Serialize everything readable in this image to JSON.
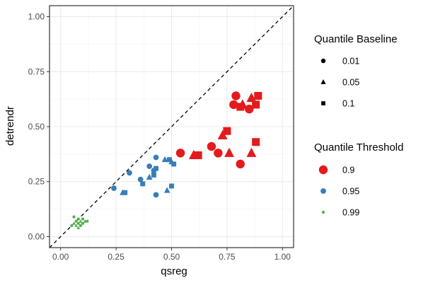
{
  "chart_data": {
    "type": "scatter",
    "xlabel": "qsreg",
    "ylabel": "detrendr",
    "xlim": [
      -0.05,
      1.05
    ],
    "ylim": [
      -0.05,
      1.05
    ],
    "x_ticks": [
      0.0,
      0.25,
      0.5,
      0.75,
      1.0
    ],
    "y_ticks": [
      0.0,
      0.25,
      0.5,
      0.75,
      1.0
    ],
    "x_tick_labels": [
      "0.00",
      "0.25",
      "0.50",
      "0.75",
      "1.00"
    ],
    "y_tick_labels": [
      "0.00",
      "0.25",
      "0.50",
      "0.75",
      "1.00"
    ],
    "grid": true,
    "reference_line": {
      "type": "identity",
      "style": "dashed",
      "color": "#000000"
    },
    "legend_placement": "right",
    "legends": [
      {
        "title": "Quantile Baseline",
        "encoding": "shape",
        "entries": [
          {
            "label": "0.01",
            "shape": "circle"
          },
          {
            "label": "0.05",
            "shape": "triangle"
          },
          {
            "label": "0.1",
            "shape": "square"
          }
        ]
      },
      {
        "title": "Quantile Threshold",
        "encoding": "color_size",
        "entries": [
          {
            "label": "0.9",
            "color": "#e41a1c",
            "size": "large"
          },
          {
            "label": "0.95",
            "color": "#377eb8",
            "size": "medium"
          },
          {
            "label": "0.99",
            "color": "#4daf4a",
            "size": "small"
          }
        ]
      }
    ],
    "series": [
      {
        "threshold": "0.9",
        "color": "#e41a1c",
        "points": [
          {
            "x": 0.54,
            "y": 0.38,
            "shape": "circle"
          },
          {
            "x": 0.68,
            "y": 0.41,
            "shape": "circle"
          },
          {
            "x": 0.71,
            "y": 0.38,
            "shape": "circle"
          },
          {
            "x": 0.76,
            "y": 0.38,
            "shape": "triangle"
          },
          {
            "x": 0.81,
            "y": 0.33,
            "shape": "circle"
          },
          {
            "x": 0.86,
            "y": 0.38,
            "shape": "triangle"
          },
          {
            "x": 0.88,
            "y": 0.43,
            "shape": "square"
          },
          {
            "x": 0.73,
            "y": 0.46,
            "shape": "triangle"
          },
          {
            "x": 0.75,
            "y": 0.48,
            "shape": "square"
          },
          {
            "x": 0.6,
            "y": 0.37,
            "shape": "triangle"
          },
          {
            "x": 0.62,
            "y": 0.37,
            "shape": "square"
          },
          {
            "x": 0.79,
            "y": 0.64,
            "shape": "circle"
          },
          {
            "x": 0.78,
            "y": 0.6,
            "shape": "circle"
          },
          {
            "x": 0.81,
            "y": 0.59,
            "shape": "square"
          },
          {
            "x": 0.85,
            "y": 0.58,
            "shape": "circle"
          },
          {
            "x": 0.86,
            "y": 0.63,
            "shape": "triangle"
          },
          {
            "x": 0.89,
            "y": 0.64,
            "shape": "square"
          },
          {
            "x": 0.88,
            "y": 0.6,
            "shape": "square"
          },
          {
            "x": 0.82,
            "y": 0.6,
            "shape": "triangle"
          }
        ]
      },
      {
        "threshold": "0.95",
        "color": "#377eb8",
        "points": [
          {
            "x": 0.24,
            "y": 0.22,
            "shape": "circle"
          },
          {
            "x": 0.28,
            "y": 0.2,
            "shape": "triangle"
          },
          {
            "x": 0.29,
            "y": 0.2,
            "shape": "square"
          },
          {
            "x": 0.31,
            "y": 0.29,
            "shape": "circle"
          },
          {
            "x": 0.36,
            "y": 0.26,
            "shape": "circle"
          },
          {
            "x": 0.37,
            "y": 0.24,
            "shape": "square"
          },
          {
            "x": 0.4,
            "y": 0.27,
            "shape": "triangle"
          },
          {
            "x": 0.4,
            "y": 0.32,
            "shape": "circle"
          },
          {
            "x": 0.42,
            "y": 0.28,
            "shape": "square"
          },
          {
            "x": 0.43,
            "y": 0.36,
            "shape": "circle"
          },
          {
            "x": 0.43,
            "y": 0.31,
            "shape": "square"
          },
          {
            "x": 0.42,
            "y": 0.3,
            "shape": "circle"
          },
          {
            "x": 0.43,
            "y": 0.19,
            "shape": "circle"
          },
          {
            "x": 0.48,
            "y": 0.21,
            "shape": "triangle"
          },
          {
            "x": 0.5,
            "y": 0.23,
            "shape": "square"
          },
          {
            "x": 0.47,
            "y": 0.35,
            "shape": "triangle"
          },
          {
            "x": 0.49,
            "y": 0.35,
            "shape": "square"
          },
          {
            "x": 0.5,
            "y": 0.34,
            "shape": "triangle"
          },
          {
            "x": 0.51,
            "y": 0.33,
            "shape": "square"
          }
        ]
      },
      {
        "threshold": "0.99",
        "color": "#4daf4a",
        "points": [
          {
            "x": 0.05,
            "y": 0.05,
            "shape": "circle"
          },
          {
            "x": 0.06,
            "y": 0.06,
            "shape": "triangle"
          },
          {
            "x": 0.06,
            "y": 0.09,
            "shape": "circle"
          },
          {
            "x": 0.07,
            "y": 0.07,
            "shape": "square"
          },
          {
            "x": 0.07,
            "y": 0.05,
            "shape": "triangle"
          },
          {
            "x": 0.08,
            "y": 0.06,
            "shape": "square"
          },
          {
            "x": 0.08,
            "y": 0.08,
            "shape": "circle"
          },
          {
            "x": 0.09,
            "y": 0.05,
            "shape": "square"
          },
          {
            "x": 0.09,
            "y": 0.07,
            "shape": "triangle"
          },
          {
            "x": 0.1,
            "y": 0.06,
            "shape": "circle"
          },
          {
            "x": 0.1,
            "y": 0.08,
            "shape": "square"
          },
          {
            "x": 0.11,
            "y": 0.07,
            "shape": "triangle"
          },
          {
            "x": 0.12,
            "y": 0.07,
            "shape": "square"
          },
          {
            "x": 0.08,
            "y": 0.04,
            "shape": "triangle"
          }
        ]
      }
    ]
  }
}
